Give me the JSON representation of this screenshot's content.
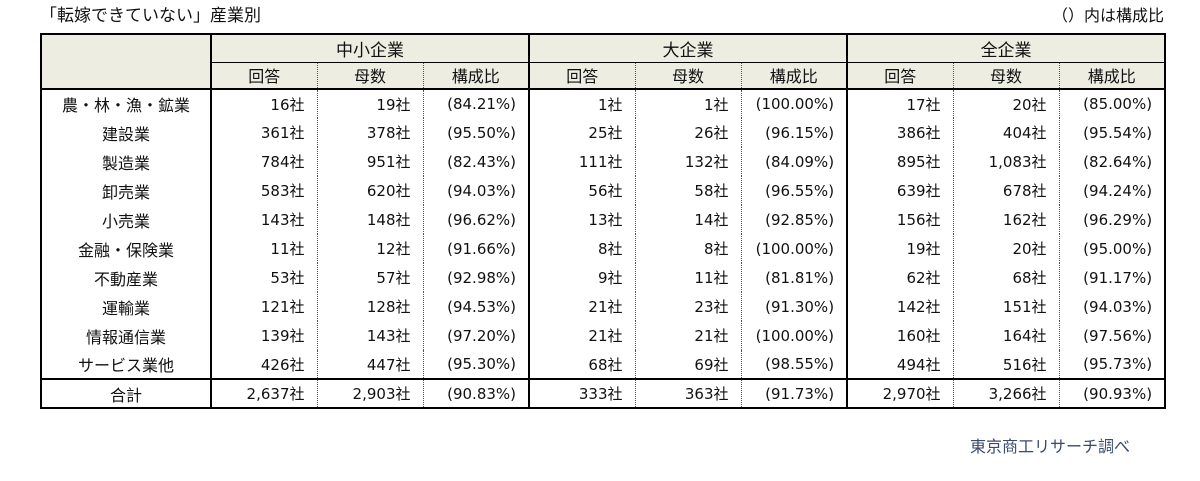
{
  "title": "「転嫁できていない」産業別",
  "note": "（）内は構成比",
  "source": "東京商工リサーチ調べ",
  "colors": {
    "header_bg": "#EDEDE1",
    "border": "#000000",
    "source_text": "#3A4A6B",
    "page_bg": "#FFFFFF"
  },
  "table": {
    "group_headers": [
      "中小企業",
      "大企業",
      "全企業"
    ],
    "sub_headers": [
      "回答",
      "母数",
      "構成比"
    ],
    "rows": [
      {
        "label": "農・林・漁・鉱業",
        "sme": [
          "16社",
          "19社",
          "(84.21%)"
        ],
        "large": [
          "1社",
          "1社",
          "(100.00%)"
        ],
        "all": [
          "17社",
          "20社",
          "(85.00%)"
        ]
      },
      {
        "label": "建設業",
        "sme": [
          "361社",
          "378社",
          "(95.50%)"
        ],
        "large": [
          "25社",
          "26社",
          "(96.15%)"
        ],
        "all": [
          "386社",
          "404社",
          "(95.54%)"
        ]
      },
      {
        "label": "製造業",
        "sme": [
          "784社",
          "951社",
          "(82.43%)"
        ],
        "large": [
          "111社",
          "132社",
          "(84.09%)"
        ],
        "all": [
          "895社",
          "1,083社",
          "(82.64%)"
        ]
      },
      {
        "label": "卸売業",
        "sme": [
          "583社",
          "620社",
          "(94.03%)"
        ],
        "large": [
          "56社",
          "58社",
          "(96.55%)"
        ],
        "all": [
          "639社",
          "678社",
          "(94.24%)"
        ]
      },
      {
        "label": "小売業",
        "sme": [
          "143社",
          "148社",
          "(96.62%)"
        ],
        "large": [
          "13社",
          "14社",
          "(92.85%)"
        ],
        "all": [
          "156社",
          "162社",
          "(96.29%)"
        ]
      },
      {
        "label": "金融・保険業",
        "sme": [
          "11社",
          "12社",
          "(91.66%)"
        ],
        "large": [
          "8社",
          "8社",
          "(100.00%)"
        ],
        "all": [
          "19社",
          "20社",
          "(95.00%)"
        ]
      },
      {
        "label": "不動産業",
        "sme": [
          "53社",
          "57社",
          "(92.98%)"
        ],
        "large": [
          "9社",
          "11社",
          "(81.81%)"
        ],
        "all": [
          "62社",
          "68社",
          "(91.17%)"
        ]
      },
      {
        "label": "運輸業",
        "sme": [
          "121社",
          "128社",
          "(94.53%)"
        ],
        "large": [
          "21社",
          "23社",
          "(91.30%)"
        ],
        "all": [
          "142社",
          "151社",
          "(94.03%)"
        ]
      },
      {
        "label": "情報通信業",
        "sme": [
          "139社",
          "143社",
          "(97.20%)"
        ],
        "large": [
          "21社",
          "21社",
          "(100.00%)"
        ],
        "all": [
          "160社",
          "164社",
          "(97.56%)"
        ]
      },
      {
        "label": "サービス業他",
        "sme": [
          "426社",
          "447社",
          "(95.30%)"
        ],
        "large": [
          "68社",
          "69社",
          "(98.55%)"
        ],
        "all": [
          "494社",
          "516社",
          "(95.73%)"
        ]
      }
    ],
    "total": {
      "label": "合計",
      "sme": [
        "2,637社",
        "2,903社",
        "(90.83%)"
      ],
      "large": [
        "333社",
        "363社",
        "(91.73%)"
      ],
      "all": [
        "2,970社",
        "3,266社",
        "(90.93%)"
      ]
    }
  },
  "chart_data": {
    "type": "table",
    "title": "「転嫁できていない」産業別",
    "note": "（）内は構成比",
    "source": "東京商工リサーチ調べ",
    "column_groups": [
      "中小企業",
      "大企業",
      "全企業"
    ],
    "columns_per_group": [
      "回答",
      "母数",
      "構成比"
    ],
    "unit": "社",
    "rows": [
      {
        "industry": "農・林・漁・鉱業",
        "sme": {
          "kaito": 16,
          "bosu": 19,
          "pct": 84.21
        },
        "large": {
          "kaito": 1,
          "bosu": 1,
          "pct": 100.0
        },
        "all": {
          "kaito": 17,
          "bosu": 20,
          "pct": 85.0
        }
      },
      {
        "industry": "建設業",
        "sme": {
          "kaito": 361,
          "bosu": 378,
          "pct": 95.5
        },
        "large": {
          "kaito": 25,
          "bosu": 26,
          "pct": 96.15
        },
        "all": {
          "kaito": 386,
          "bosu": 404,
          "pct": 95.54
        }
      },
      {
        "industry": "製造業",
        "sme": {
          "kaito": 784,
          "bosu": 951,
          "pct": 82.43
        },
        "large": {
          "kaito": 111,
          "bosu": 132,
          "pct": 84.09
        },
        "all": {
          "kaito": 895,
          "bosu": 1083,
          "pct": 82.64
        }
      },
      {
        "industry": "卸売業",
        "sme": {
          "kaito": 583,
          "bosu": 620,
          "pct": 94.03
        },
        "large": {
          "kaito": 56,
          "bosu": 58,
          "pct": 96.55
        },
        "all": {
          "kaito": 639,
          "bosu": 678,
          "pct": 94.24
        }
      },
      {
        "industry": "小売業",
        "sme": {
          "kaito": 143,
          "bosu": 148,
          "pct": 96.62
        },
        "large": {
          "kaito": 13,
          "bosu": 14,
          "pct": 92.85
        },
        "all": {
          "kaito": 156,
          "bosu": 162,
          "pct": 96.29
        }
      },
      {
        "industry": "金融・保険業",
        "sme": {
          "kaito": 11,
          "bosu": 12,
          "pct": 91.66
        },
        "large": {
          "kaito": 8,
          "bosu": 8,
          "pct": 100.0
        },
        "all": {
          "kaito": 19,
          "bosu": 20,
          "pct": 95.0
        }
      },
      {
        "industry": "不動産業",
        "sme": {
          "kaito": 53,
          "bosu": 57,
          "pct": 92.98
        },
        "large": {
          "kaito": 9,
          "bosu": 11,
          "pct": 81.81
        },
        "all": {
          "kaito": 62,
          "bosu": 68,
          "pct": 91.17
        }
      },
      {
        "industry": "運輸業",
        "sme": {
          "kaito": 121,
          "bosu": 128,
          "pct": 94.53
        },
        "large": {
          "kaito": 21,
          "bosu": 23,
          "pct": 91.3
        },
        "all": {
          "kaito": 142,
          "bosu": 151,
          "pct": 94.03
        }
      },
      {
        "industry": "情報通信業",
        "sme": {
          "kaito": 139,
          "bosu": 143,
          "pct": 97.2
        },
        "large": {
          "kaito": 21,
          "bosu": 21,
          "pct": 100.0
        },
        "all": {
          "kaito": 160,
          "bosu": 164,
          "pct": 97.56
        }
      },
      {
        "industry": "サービス業他",
        "sme": {
          "kaito": 426,
          "bosu": 447,
          "pct": 95.3
        },
        "large": {
          "kaito": 68,
          "bosu": 69,
          "pct": 98.55
        },
        "all": {
          "kaito": 494,
          "bosu": 516,
          "pct": 95.73
        }
      },
      {
        "industry": "合計",
        "sme": {
          "kaito": 2637,
          "bosu": 2903,
          "pct": 90.83
        },
        "large": {
          "kaito": 333,
          "bosu": 363,
          "pct": 91.73
        },
        "all": {
          "kaito": 2970,
          "bosu": 3266,
          "pct": 90.93
        }
      }
    ]
  }
}
